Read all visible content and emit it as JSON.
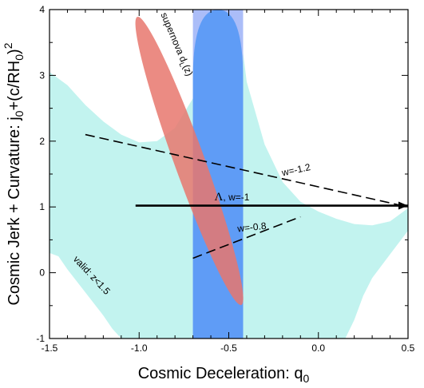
{
  "chart_data": {
    "type": "area",
    "title": "",
    "xlabel": {
      "main": "Cosmic Deceleration: q",
      "sub": "0"
    },
    "ylabel": {
      "main": "Cosmic Jerk + Curvature: j",
      "sub": "0",
      "mid": "+(c/RH",
      "sub2": "0",
      "end": ")",
      "sup": "2"
    },
    "xlim": [
      -1.5,
      0.5
    ],
    "ylim": [
      -1,
      4
    ],
    "xticks": [
      {
        "value": -1.5,
        "label": "-1.5"
      },
      {
        "value": -1.0,
        "label": "-1.0"
      },
      {
        "value": -0.5,
        "label": "-0.5"
      },
      {
        "value": 0.0,
        "label": "0.0"
      },
      {
        "value": 0.5,
        "label": "0.5"
      }
    ],
    "yticks": [
      {
        "value": -1,
        "label": "-1"
      },
      {
        "value": 0,
        "label": "0"
      },
      {
        "value": 1,
        "label": "1"
      },
      {
        "value": 2,
        "label": "2"
      },
      {
        "value": 3,
        "label": "3"
      },
      {
        "value": 4,
        "label": "4"
      }
    ],
    "colors": {
      "valid_region": "#c2f3ef",
      "band": "#5f9cf6",
      "band_light": "#abbdf8",
      "ellipse": "#e8776d"
    },
    "regions": [
      {
        "label": "valid: z<1.5",
        "upper": [
          [
            -1.5,
            3.05
          ],
          [
            -1.4,
            2.85
          ],
          [
            -1.3,
            2.55
          ],
          [
            -1.2,
            2.3
          ],
          [
            -1.1,
            2.1
          ],
          [
            -1.0,
            1.98
          ],
          [
            -0.9,
            2.0
          ],
          [
            -0.8,
            2.2
          ],
          [
            -0.7,
            2.65
          ],
          [
            -0.6,
            3.4
          ],
          [
            -0.55,
            4.0
          ],
          [
            -0.45,
            4.0
          ],
          [
            -0.4,
            2.9
          ],
          [
            -0.3,
            1.95
          ],
          [
            -0.2,
            1.38
          ],
          [
            -0.1,
            1.08
          ],
          [
            0.0,
            0.93
          ],
          [
            0.1,
            0.82
          ],
          [
            0.2,
            0.74
          ],
          [
            0.3,
            0.72
          ],
          [
            0.4,
            0.78
          ],
          [
            0.5,
            0.98
          ]
        ],
        "lower": [
          [
            -1.5,
            0.3
          ],
          [
            -1.45,
            0.25
          ],
          [
            -1.4,
            0.05
          ],
          [
            -1.3,
            -0.3
          ],
          [
            -1.2,
            -0.65
          ],
          [
            -1.15,
            -0.85
          ],
          [
            -1.1,
            -1.0
          ],
          [
            0.15,
            -1.0
          ],
          [
            0.2,
            -0.72
          ],
          [
            0.25,
            -0.35
          ],
          [
            0.3,
            -0.08
          ],
          [
            0.4,
            0.28
          ],
          [
            0.5,
            0.64
          ]
        ]
      }
    ],
    "band": {
      "label": "",
      "x_range": [
        -0.7,
        -0.42
      ],
      "core_y_range": [
        -1,
        3.7
      ]
    },
    "ellipse": {
      "label": "supernova d",
      "label_sub": "L",
      "label_end": "(z)",
      "center": [
        -0.72,
        1.7
      ],
      "semi_major_axis_end": [
        -1.01,
        3.89
      ],
      "semi_minor_width": 0.085
    },
    "lines": [
      {
        "name": "Λ, w=-1",
        "name_greek": "Λ",
        "name_rest": ", w=-1",
        "style": "solid",
        "points": [
          [
            -1.02,
            1.02
          ],
          [
            0.5,
            1.02
          ]
        ]
      },
      {
        "name": "w=-1.2",
        "style": "dashed",
        "points": [
          [
            -1.3,
            2.1
          ],
          [
            0.5,
            1.0
          ]
        ]
      },
      {
        "name": "w=-0.8",
        "style": "dashed",
        "points": [
          [
            -0.7,
            0.22
          ],
          [
            -0.1,
            0.85
          ]
        ]
      }
    ]
  }
}
